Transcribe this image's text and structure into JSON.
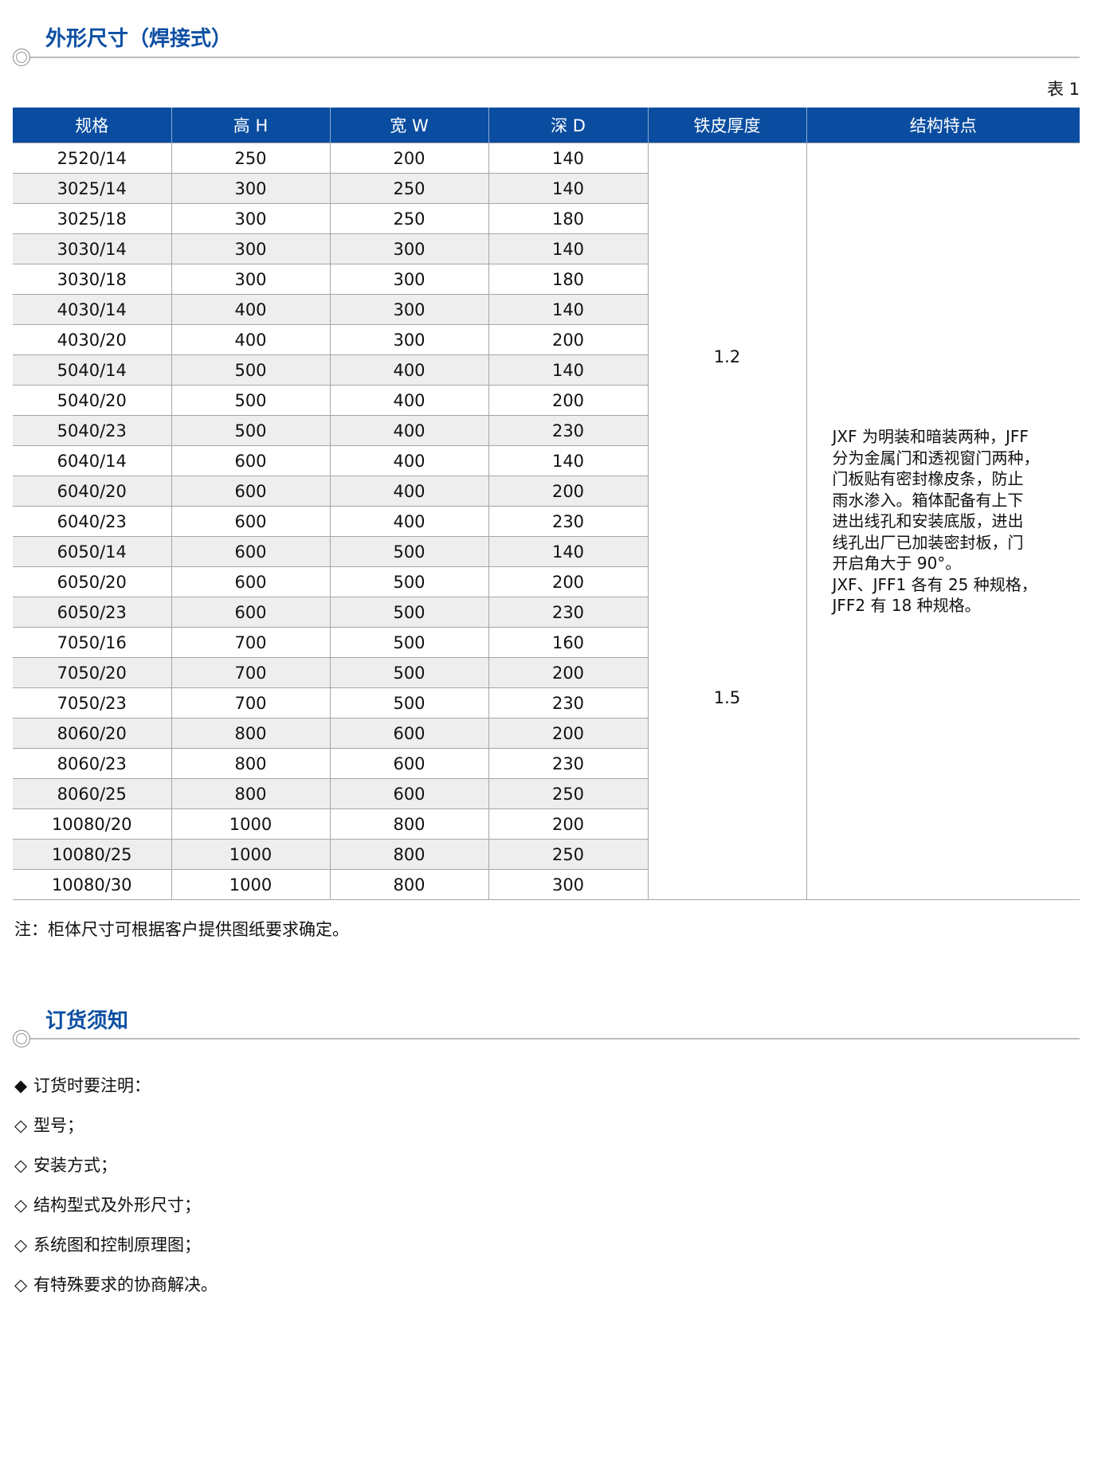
{
  "section1": {
    "title": "外形尺寸（焊接式）",
    "table_label": "表 1"
  },
  "table": {
    "headers": [
      "规格",
      "高 H",
      "宽 W",
      "深 D",
      "铁皮厚度",
      "结构特点"
    ],
    "rows": [
      [
        "2520/14",
        "250",
        "200",
        "140"
      ],
      [
        "3025/14",
        "300",
        "250",
        "140"
      ],
      [
        "3025/18",
        "300",
        "250",
        "180"
      ],
      [
        "3030/14",
        "300",
        "300",
        "140"
      ],
      [
        "3030/18",
        "300",
        "300",
        "180"
      ],
      [
        "4030/14",
        "400",
        "300",
        "140"
      ],
      [
        "4030/20",
        "400",
        "300",
        "200"
      ],
      [
        "5040/14",
        "500",
        "400",
        "140"
      ],
      [
        "5040/20",
        "500",
        "400",
        "200"
      ],
      [
        "5040/23",
        "500",
        "400",
        "230"
      ],
      [
        "6040/14",
        "600",
        "400",
        "140"
      ],
      [
        "6040/20",
        "600",
        "400",
        "200"
      ],
      [
        "6040/23",
        "600",
        "400",
        "230"
      ],
      [
        "6050/14",
        "600",
        "500",
        "140"
      ],
      [
        "6050/20",
        "600",
        "500",
        "200"
      ],
      [
        "6050/23",
        "600",
        "500",
        "230"
      ],
      [
        "7050/16",
        "700",
        "500",
        "160"
      ],
      [
        "7050/20",
        "700",
        "500",
        "200"
      ],
      [
        "7050/23",
        "700",
        "500",
        "230"
      ],
      [
        "8060/20",
        "800",
        "600",
        "200"
      ],
      [
        "8060/23",
        "800",
        "600",
        "230"
      ],
      [
        "8060/25",
        "800",
        "600",
        "250"
      ],
      [
        "10080/20",
        "1000",
        "800",
        "200"
      ],
      [
        "10080/25",
        "1000",
        "800",
        "250"
      ],
      [
        "10080/30",
        "1000",
        "800",
        "300"
      ]
    ],
    "thickness": [
      "1.2",
      "1.5"
    ],
    "features": [
      "JXF 为明装和暗装两种，JFF",
      "分为金属门和透视窗门两种，",
      "门板贴有密封橡皮条，防止",
      "雨水渗入。箱体配备有上下",
      "进出线孔和安装底版，进出",
      "线孔出厂已加装密封板，门",
      "开启角大于 90°。",
      "JXF、JFF1 各有 25 种规格，",
      "JFF2 有 18 种规格。"
    ]
  },
  "note": "注：柜体尺寸可根据客户提供图纸要求确定。",
  "section2": {
    "title": "订货须知",
    "items": [
      {
        "bullet": "◆",
        "text": "订货时要注明："
      },
      {
        "bullet": "◇",
        "text": "型号；"
      },
      {
        "bullet": "◇",
        "text": "安装方式；"
      },
      {
        "bullet": "◇",
        "text": "结构型式及外形尺寸；"
      },
      {
        "bullet": "◇",
        "text": "系统图和控制原理图；"
      },
      {
        "bullet": "◇",
        "text": "有特殊要求的协商解决。"
      }
    ]
  },
  "colors": {
    "accent": "#0a4da0",
    "row_alt": "#eeeeee"
  }
}
